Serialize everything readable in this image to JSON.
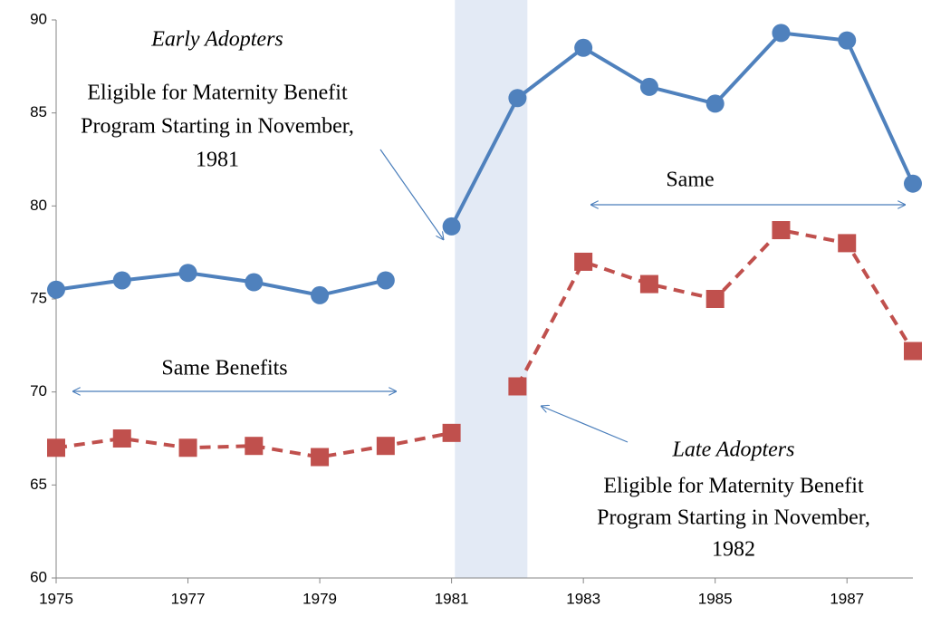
{
  "chart_data": {
    "type": "line",
    "xlim": [
      1975,
      1988
    ],
    "xticks": [
      1975,
      1977,
      1979,
      1981,
      1983,
      1985,
      1987
    ],
    "ylim": [
      60,
      90
    ],
    "yticks": [
      60,
      65,
      70,
      75,
      80,
      85,
      90
    ],
    "shade": [
      1981.05,
      1982.15
    ],
    "shade_color": "#e3eaf5",
    "series": [
      {
        "color": "#4f81bd",
        "dash": false,
        "marker": "circle",
        "x": [
          1975,
          1976,
          1977,
          1978,
          1979,
          1980
        ],
        "values": [
          75.5,
          76.0,
          76.4,
          75.9,
          75.2,
          76.0
        ]
      },
      {
        "color": "#4f81bd",
        "dash": false,
        "marker": "circle",
        "x": [
          1981,
          1982,
          1983,
          1984,
          1985,
          1986,
          1987,
          1988
        ],
        "values": [
          78.9,
          85.8,
          88.5,
          86.4,
          85.5,
          89.3,
          88.9,
          81.2
        ]
      },
      {
        "color": "#c0504d",
        "dash": true,
        "marker": "square",
        "x": [
          1975,
          1976,
          1977,
          1978,
          1979,
          1980,
          1981
        ],
        "values": [
          67.0,
          67.5,
          67.0,
          67.1,
          66.5,
          67.1,
          67.8
        ]
      },
      {
        "color": "#c0504d",
        "dash": true,
        "marker": "square",
        "x": [
          1982,
          1983,
          1984,
          1985,
          1986,
          1987,
          1988
        ],
        "values": [
          70.3,
          77.0,
          75.8,
          75.0,
          78.7,
          78.0,
          72.2
        ]
      }
    ],
    "annotations": [
      {
        "title": "Early Adopters",
        "lines": [
          "Eligible for Maternity Benefit",
          "Program Starting in November,",
          "1981"
        ]
      },
      {
        "title": "Late Adopters",
        "lines": [
          "Eligible for Maternity Benefit",
          "Program Starting in November,",
          "1982"
        ]
      }
    ],
    "spans": [
      "Same Benefits",
      "Same"
    ]
  }
}
